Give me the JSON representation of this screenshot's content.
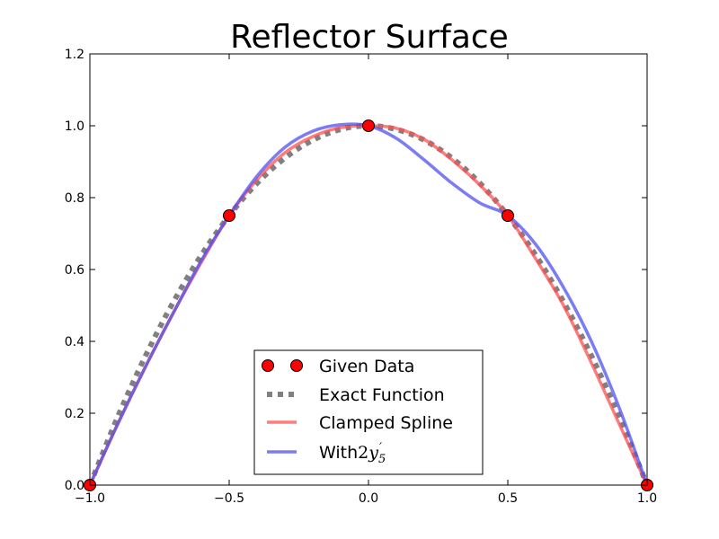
{
  "chart_data": {
    "type": "line",
    "title": "Reflector Surface",
    "xlabel": "",
    "ylabel": "",
    "xlim": [
      -1.0,
      1.0
    ],
    "ylim": [
      0.0,
      1.2
    ],
    "xticks": [
      "−1.0",
      "−0.5",
      "0.0",
      "0.5",
      "1.0"
    ],
    "yticks": [
      "0.0",
      "0.2",
      "0.4",
      "0.6",
      "0.8",
      "1.0",
      "1.2"
    ],
    "grid": false,
    "legend_position": "lower-center",
    "series": [
      {
        "name": "Given Data",
        "style": "markers",
        "color": "#ff0000",
        "x": [
          -1.0,
          -0.5,
          0.0,
          0.5,
          1.0
        ],
        "y": [
          0.0,
          0.75,
          1.0,
          0.75,
          0.0
        ]
      },
      {
        "name": "Exact Function",
        "style": "dotted",
        "color": "#808080",
        "x": [
          -1.0,
          -0.9,
          -0.8,
          -0.7,
          -0.6,
          -0.5,
          -0.4,
          -0.3,
          -0.2,
          -0.1,
          0.0,
          0.1,
          0.2,
          0.3,
          0.4,
          0.5,
          0.6,
          0.7,
          0.8,
          0.9,
          1.0
        ],
        "y": [
          0.0,
          0.19,
          0.36,
          0.51,
          0.64,
          0.75,
          0.84,
          0.91,
          0.96,
          0.99,
          1.0,
          0.99,
          0.96,
          0.91,
          0.84,
          0.75,
          0.64,
          0.51,
          0.36,
          0.19,
          0.0
        ]
      },
      {
        "name": "Clamped Spline",
        "style": "solid",
        "color": "#ff5050",
        "x": [
          -1.0,
          -0.9,
          -0.8,
          -0.7,
          -0.6,
          -0.5,
          -0.4,
          -0.3,
          -0.2,
          -0.1,
          0.0,
          0.1,
          0.2,
          0.3,
          0.4,
          0.5,
          0.6,
          0.7,
          0.8,
          0.9,
          1.0
        ],
        "y": [
          0.0,
          0.17,
          0.33,
          0.48,
          0.62,
          0.75,
          0.85,
          0.925,
          0.97,
          0.995,
          1.0,
          0.993,
          0.962,
          0.905,
          0.835,
          0.75,
          0.63,
          0.5,
          0.34,
          0.17,
          0.0
        ]
      },
      {
        "name": "With 2y5'",
        "style": "solid",
        "color": "#5050f0",
        "x": [
          -1.0,
          -0.9,
          -0.8,
          -0.7,
          -0.6,
          -0.5,
          -0.4,
          -0.3,
          -0.2,
          -0.1,
          0.0,
          0.1,
          0.2,
          0.3,
          0.4,
          0.5,
          0.6,
          0.7,
          0.8,
          0.9,
          1.0
        ],
        "y": [
          0.0,
          0.17,
          0.33,
          0.48,
          0.625,
          0.75,
          0.86,
          0.94,
          0.985,
          1.003,
          1.0,
          0.965,
          0.905,
          0.84,
          0.785,
          0.75,
          0.67,
          0.55,
          0.4,
          0.215,
          0.0
        ]
      }
    ],
    "legend": [
      {
        "label": "Given Data",
        "series": 0
      },
      {
        "label": "Exact Function",
        "series": 1
      },
      {
        "label": "Clamped Spline",
        "series": 2
      },
      {
        "label": "With ",
        "math_base": "2",
        "math_var": "y",
        "math_sub": "5",
        "math_prime": "′",
        "series": 3
      }
    ]
  }
}
